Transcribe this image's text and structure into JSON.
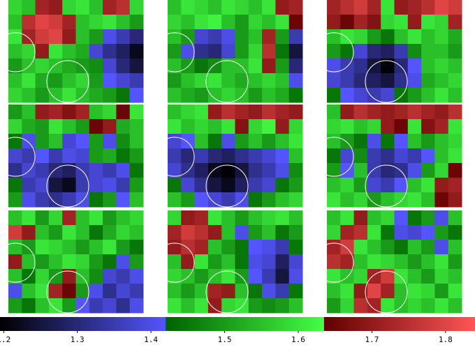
{
  "chart_data": {
    "type": "heatmap",
    "panels": [
      {
        "values": [
          [
            1.58,
            1.55,
            1.72,
            1.7,
            1.58,
            1.6,
            1.55,
            1.72,
            1.75,
            1.58
          ],
          [
            1.55,
            1.75,
            1.8,
            1.78,
            1.72,
            1.55,
            1.58,
            1.6,
            1.55,
            1.5
          ],
          [
            1.6,
            1.72,
            1.78,
            1.8,
            1.7,
            1.55,
            1.5,
            1.4,
            1.35,
            1.3
          ],
          [
            1.55,
            1.58,
            1.7,
            1.6,
            1.55,
            1.52,
            1.38,
            1.32,
            1.28,
            1.22
          ],
          [
            1.5,
            1.55,
            1.58,
            1.55,
            1.52,
            1.5,
            1.48,
            1.38,
            1.3,
            1.25
          ],
          [
            1.55,
            1.6,
            1.52,
            1.5,
            1.55,
            1.58,
            1.5,
            1.42,
            1.38,
            1.35
          ],
          [
            1.58,
            1.55,
            1.5,
            1.55,
            1.6,
            1.55,
            1.52,
            1.5,
            1.45,
            1.42
          ]
        ]
      },
      {
        "values": [
          [
            1.55,
            1.6,
            1.58,
            1.55,
            1.6,
            1.58,
            1.55,
            1.6,
            1.7,
            1.72
          ],
          [
            1.58,
            1.55,
            1.6,
            1.62,
            1.55,
            1.5,
            1.58,
            1.55,
            1.6,
            1.65
          ],
          [
            1.55,
            1.5,
            1.38,
            1.35,
            1.4,
            1.5,
            1.55,
            1.72,
            1.5,
            1.35
          ],
          [
            1.5,
            1.4,
            1.32,
            1.3,
            1.38,
            1.5,
            1.58,
            1.75,
            1.45,
            1.25
          ],
          [
            1.55,
            1.5,
            1.45,
            1.48,
            1.55,
            1.55,
            1.6,
            1.7,
            1.5,
            1.3
          ],
          [
            1.5,
            1.55,
            1.58,
            1.6,
            1.55,
            1.52,
            1.55,
            1.58,
            1.55,
            1.4
          ],
          [
            1.55,
            1.52,
            1.5,
            1.55,
            1.58,
            1.55,
            1.5,
            1.55,
            1.52,
            1.45
          ]
        ]
      },
      {
        "values": [
          [
            1.72,
            1.75,
            1.78,
            1.72,
            1.6,
            1.7,
            1.72,
            1.75,
            1.8,
            1.78
          ],
          [
            1.7,
            1.65,
            1.72,
            1.68,
            1.58,
            1.6,
            1.7,
            1.6,
            1.58,
            1.72
          ],
          [
            1.55,
            1.6,
            1.58,
            1.5,
            1.45,
            1.55,
            1.6,
            1.55,
            1.58,
            1.52
          ],
          [
            1.5,
            1.45,
            1.38,
            1.3,
            1.28,
            1.35,
            1.48,
            1.55,
            1.55,
            1.5
          ],
          [
            1.4,
            1.35,
            1.32,
            1.25,
            1.2,
            1.3,
            1.42,
            1.55,
            1.58,
            1.55
          ],
          [
            1.38,
            1.35,
            1.3,
            1.28,
            1.25,
            1.32,
            1.4,
            1.52,
            1.55,
            1.58
          ],
          [
            1.45,
            1.42,
            1.38,
            1.35,
            1.38,
            1.45,
            1.5,
            1.55,
            1.6,
            1.55
          ]
        ]
      },
      {
        "values": [
          [
            1.5,
            1.55,
            1.7,
            1.72,
            1.68,
            1.72,
            1.55,
            1.58,
            1.65,
            1.6
          ],
          [
            1.58,
            1.52,
            1.5,
            1.6,
            1.55,
            1.5,
            1.65,
            1.7,
            1.52,
            1.55
          ],
          [
            1.45,
            1.4,
            1.5,
            1.55,
            1.38,
            1.42,
            1.5,
            1.4,
            1.48,
            1.55
          ],
          [
            1.38,
            1.35,
            1.42,
            1.35,
            1.4,
            1.38,
            1.5,
            1.52,
            1.45,
            1.5
          ],
          [
            1.32,
            1.38,
            1.35,
            1.3,
            1.28,
            1.35,
            1.38,
            1.35,
            1.4,
            1.45
          ],
          [
            1.45,
            1.35,
            1.38,
            1.25,
            1.22,
            1.35,
            1.38,
            1.4,
            1.35,
            1.5
          ],
          [
            1.5,
            1.4,
            1.35,
            1.32,
            1.35,
            1.4,
            1.45,
            1.5,
            1.42,
            1.55
          ]
        ]
      },
      {
        "values": [
          [
            1.55,
            1.58,
            1.6,
            1.7,
            1.75,
            1.72,
            1.7,
            1.75,
            1.72,
            1.7
          ],
          [
            1.6,
            1.55,
            1.58,
            1.55,
            1.6,
            1.68,
            1.58,
            1.62,
            1.7,
            1.58
          ],
          [
            1.38,
            1.42,
            1.55,
            1.45,
            1.4,
            1.5,
            1.55,
            1.5,
            1.55,
            1.6
          ],
          [
            1.35,
            1.3,
            1.35,
            1.3,
            1.28,
            1.32,
            1.35,
            1.38,
            1.42,
            1.55
          ],
          [
            1.38,
            1.32,
            1.28,
            1.22,
            1.2,
            1.25,
            1.32,
            1.35,
            1.4,
            1.48
          ],
          [
            1.45,
            1.38,
            1.32,
            1.25,
            1.22,
            1.28,
            1.35,
            1.38,
            1.45,
            1.5
          ],
          [
            1.55,
            1.5,
            1.42,
            1.38,
            1.35,
            1.4,
            1.45,
            1.5,
            1.55,
            1.58
          ]
        ]
      },
      {
        "values": [
          [
            1.55,
            1.7,
            1.75,
            1.72,
            1.7,
            1.72,
            1.75,
            1.72,
            1.7,
            1.75
          ],
          [
            1.58,
            1.6,
            1.55,
            1.58,
            1.7,
            1.65,
            1.6,
            1.68,
            1.72,
            1.6
          ],
          [
            1.55,
            1.5,
            1.45,
            1.4,
            1.45,
            1.42,
            1.55,
            1.5,
            1.55,
            1.58
          ],
          [
            1.45,
            1.38,
            1.48,
            1.35,
            1.32,
            1.38,
            1.35,
            1.42,
            1.55,
            1.6
          ],
          [
            1.5,
            1.42,
            1.55,
            1.35,
            1.3,
            1.32,
            1.4,
            1.5,
            1.58,
            1.65
          ],
          [
            1.55,
            1.58,
            1.5,
            1.38,
            1.35,
            1.42,
            1.55,
            1.6,
            1.7,
            1.72
          ],
          [
            1.6,
            1.55,
            1.58,
            1.5,
            1.55,
            1.58,
            1.6,
            1.55,
            1.65,
            1.7
          ]
        ]
      },
      {
        "values": [
          [
            1.55,
            1.6,
            1.5,
            1.58,
            1.72,
            1.55,
            1.6,
            1.5,
            1.55,
            1.58
          ],
          [
            1.78,
            1.7,
            1.55,
            1.5,
            1.6,
            1.55,
            1.45,
            1.52,
            1.58,
            1.55
          ],
          [
            1.55,
            1.5,
            1.6,
            1.58,
            1.55,
            1.5,
            1.55,
            1.6,
            1.5,
            1.45
          ],
          [
            1.7,
            1.55,
            1.5,
            1.55,
            1.6,
            1.58,
            1.5,
            1.45,
            1.4,
            1.5
          ],
          [
            1.55,
            1.45,
            1.58,
            1.5,
            1.7,
            1.55,
            1.48,
            1.38,
            1.35,
            1.4
          ],
          [
            1.4,
            1.55,
            1.6,
            1.72,
            1.65,
            1.5,
            1.4,
            1.32,
            1.38,
            1.35
          ],
          [
            1.5,
            1.45,
            1.55,
            1.6,
            1.5,
            1.42,
            1.35,
            1.38,
            1.32,
            1.4
          ]
        ]
      },
      {
        "values": [
          [
            1.58,
            1.7,
            1.72,
            1.6,
            1.55,
            1.5,
            1.55,
            1.58,
            1.6,
            1.55
          ],
          [
            1.72,
            1.78,
            1.75,
            1.7,
            1.55,
            1.4,
            1.5,
            1.55,
            1.45,
            1.5
          ],
          [
            1.7,
            1.75,
            1.72,
            1.55,
            1.5,
            1.45,
            1.42,
            1.4,
            1.35,
            1.45
          ],
          [
            1.55,
            1.7,
            1.6,
            1.5,
            1.55,
            1.45,
            1.4,
            1.38,
            1.28,
            1.38
          ],
          [
            1.58,
            1.55,
            1.5,
            1.55,
            1.6,
            1.5,
            1.42,
            1.35,
            1.25,
            1.4
          ],
          [
            1.55,
            1.5,
            1.55,
            1.72,
            1.7,
            1.55,
            1.45,
            1.4,
            1.35,
            1.45
          ],
          [
            1.6,
            1.55,
            1.6,
            1.7,
            1.58,
            1.6,
            1.5,
            1.48,
            1.5,
            1.55
          ]
        ]
      },
      {
        "values": [
          [
            1.55,
            1.6,
            1.7,
            1.55,
            1.58,
            1.42,
            1.45,
            1.5,
            1.4,
            1.55
          ],
          [
            1.58,
            1.72,
            1.75,
            1.6,
            1.45,
            1.4,
            1.38,
            1.42,
            1.5,
            1.45
          ],
          [
            1.72,
            1.78,
            1.6,
            1.55,
            1.5,
            1.45,
            1.55,
            1.5,
            1.4,
            1.55
          ],
          [
            1.75,
            1.72,
            1.55,
            1.6,
            1.58,
            1.55,
            1.5,
            1.55,
            1.6,
            1.5
          ],
          [
            1.6,
            1.55,
            1.58,
            1.72,
            1.78,
            1.6,
            1.55,
            1.5,
            1.58,
            1.55
          ],
          [
            1.55,
            1.6,
            1.7,
            1.8,
            1.72,
            1.55,
            1.6,
            1.58,
            1.5,
            1.6
          ],
          [
            1.5,
            1.58,
            1.75,
            1.72,
            1.6,
            1.55,
            1.58,
            1.55,
            1.6,
            1.55
          ]
        ]
      }
    ],
    "colorbar": {
      "lim": [
        1.195,
        1.84
      ],
      "ticks": [
        1.2,
        1.3,
        1.4,
        1.5,
        1.6,
        1.7,
        1.8
      ],
      "colormap": [
        {
          "range": [
            1.195,
            1.42
          ],
          "colors": [
            "#000000",
            "#5555ff"
          ]
        },
        {
          "range": [
            1.42,
            1.635
          ],
          "colors": [
            "#006000",
            "#44ff44"
          ]
        },
        {
          "range": [
            1.635,
            1.84
          ],
          "colors": [
            "#600000",
            "#ff5555"
          ]
        }
      ]
    }
  }
}
